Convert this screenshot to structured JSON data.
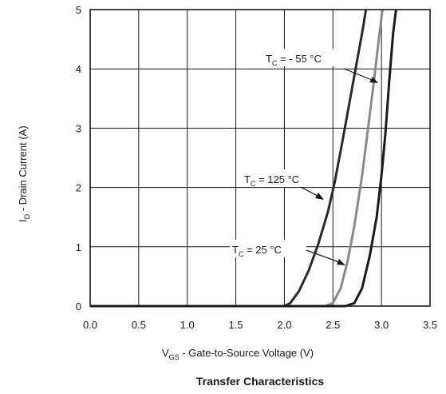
{
  "chart_data": {
    "type": "line",
    "title": "Transfer Characteristics",
    "xlabel": {
      "main": "V",
      "sub": "GS",
      "rest": " - Gate-to-Source Voltage (V)"
    },
    "ylabel": {
      "main": "I",
      "sub": "D",
      "rest": " - Drain Current (A)"
    },
    "xlim": [
      0.0,
      3.5
    ],
    "ylim": [
      0,
      5
    ],
    "xticks": [
      "0.0",
      "0.5",
      "1.0",
      "1.5",
      "2.0",
      "2.5",
      "3.0",
      "3.5"
    ],
    "yticks": [
      "0",
      "1",
      "2",
      "3",
      "4",
      "5"
    ],
    "grid": true,
    "series": [
      {
        "name": "T_C = -55 °C",
        "color": "#2a2a2a",
        "points": [
          [
            0,
            0
          ],
          [
            2.0,
            0
          ],
          [
            2.06,
            0.05
          ],
          [
            2.15,
            0.25
          ],
          [
            2.25,
            0.6
          ],
          [
            2.35,
            1.05
          ],
          [
            2.45,
            1.6
          ],
          [
            2.52,
            2.1
          ],
          [
            2.6,
            2.8
          ],
          [
            2.7,
            3.7
          ],
          [
            2.8,
            4.6
          ],
          [
            2.84,
            5.0
          ]
        ]
      },
      {
        "name": "T_C = 125 °C",
        "color": "#8a8a8a",
        "points": [
          [
            0,
            0
          ],
          [
            2.42,
            0
          ],
          [
            2.5,
            0.05
          ],
          [
            2.58,
            0.3
          ],
          [
            2.65,
            0.75
          ],
          [
            2.72,
            1.35
          ],
          [
            2.8,
            2.2
          ],
          [
            2.87,
            3.1
          ],
          [
            2.93,
            3.9
          ],
          [
            2.98,
            4.6
          ],
          [
            3.01,
            5.0
          ]
        ]
      },
      {
        "name": "T_C = 25 °C",
        "color": "#1a1a1a",
        "points": [
          [
            0,
            0
          ],
          [
            2.63,
            0
          ],
          [
            2.72,
            0.05
          ],
          [
            2.8,
            0.3
          ],
          [
            2.88,
            0.85
          ],
          [
            2.95,
            1.5
          ],
          [
            3.0,
            2.2
          ],
          [
            3.04,
            2.9
          ],
          [
            3.08,
            3.8
          ],
          [
            3.12,
            4.6
          ],
          [
            3.15,
            5.0
          ]
        ]
      }
    ],
    "annotations": [
      {
        "main": "T",
        "sub": "C",
        "rest": " = - 55 °C"
      },
      {
        "main": "T",
        "sub": "C",
        "rest": " = 125 °C"
      },
      {
        "main": "T",
        "sub": "C",
        "rest": " =  25 °C"
      }
    ]
  }
}
